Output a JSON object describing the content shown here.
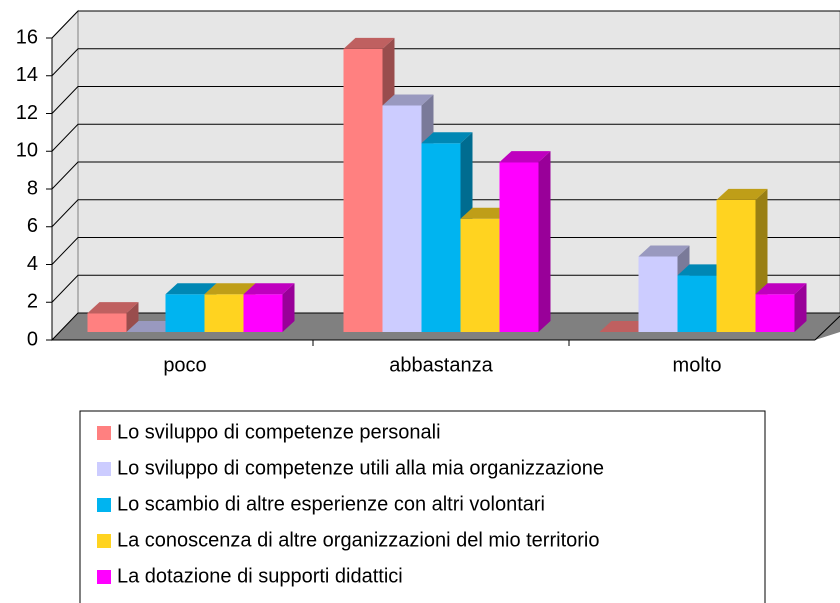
{
  "chart_data": {
    "type": "bar3d",
    "categories": [
      "poco",
      "abbastanza",
      "molto"
    ],
    "series": [
      {
        "name": "Lo sviluppo di competenze personali",
        "color": "#FF8080",
        "values": [
          1,
          15,
          0
        ]
      },
      {
        "name": "Lo sviluppo di competenze utili alla mia organizzazione",
        "color": "#CCCCFF",
        "values": [
          0,
          12,
          4
        ]
      },
      {
        "name": "Lo scambio di altre esperienze con altri volontari",
        "color": "#00B4F0",
        "values": [
          2,
          10,
          3
        ]
      },
      {
        "name": "La conoscenza di altre organizzazioni del mio territorio",
        "color": "#FFD320",
        "values": [
          2,
          6,
          7
        ]
      },
      {
        "name": "La dotazione di supporti didattici",
        "color": "#FF00FF",
        "values": [
          2,
          9,
          2
        ]
      }
    ],
    "ylim": [
      0,
      16
    ],
    "yticks": [
      0,
      2,
      4,
      6,
      8,
      10,
      12,
      14,
      16
    ],
    "grid": true,
    "legend": "bottom"
  }
}
